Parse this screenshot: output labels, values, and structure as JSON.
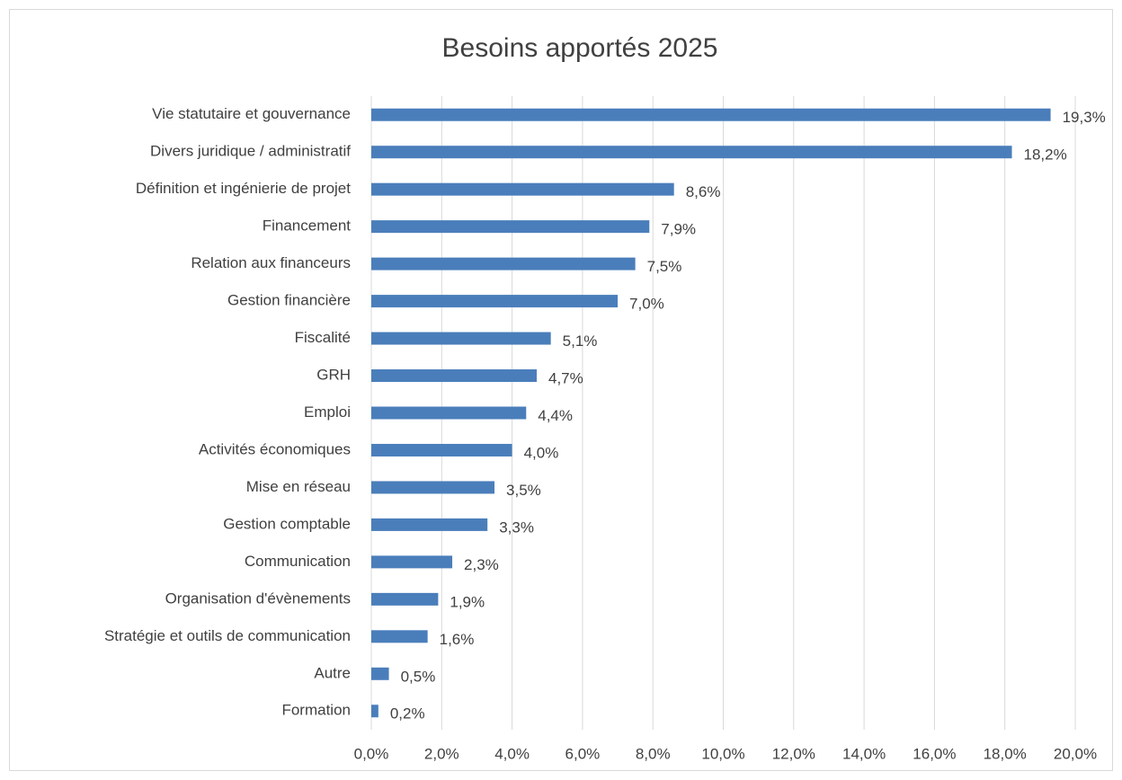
{
  "chart_data": {
    "type": "bar",
    "orientation": "horizontal",
    "title": "Besoins apportés  2025",
    "categories": [
      "Vie statutaire et gouvernance",
      "Divers juridique / administratif",
      "Définition et ingénierie de projet",
      "Financement",
      "Relation aux financeurs",
      "Gestion financière",
      "Fiscalité",
      "GRH",
      "Emploi",
      "Activités économiques",
      "Mise en réseau",
      "Gestion comptable",
      "Communication",
      "Organisation d'évènements",
      "Stratégie et outils de communication",
      "Autre",
      "Formation"
    ],
    "values": [
      19.3,
      18.2,
      8.6,
      7.9,
      7.5,
      7.0,
      5.1,
      4.7,
      4.4,
      4.0,
      3.5,
      3.3,
      2.3,
      1.9,
      1.6,
      0.5,
      0.2
    ],
    "value_labels": [
      "19,3%",
      "18,2%",
      "8,6%",
      "7,9%",
      "7,5%",
      "7,0%",
      "5,1%",
      "4,7%",
      "4,4%",
      "4,0%",
      "3,5%",
      "3,3%",
      "2,3%",
      "1,9%",
      "1,6%",
      "0,5%",
      "0,2%"
    ],
    "color": "#4a7ebb",
    "xlim": [
      0,
      20
    ],
    "xticks": [
      {
        "value": 0,
        "label": "0,0%"
      },
      {
        "value": 2,
        "label": "2,0%"
      },
      {
        "value": 4,
        "label": "4,0%"
      },
      {
        "value": 6,
        "label": "6,0%"
      },
      {
        "value": 8,
        "label": "8,0%"
      },
      {
        "value": 10,
        "label": "10,0%"
      },
      {
        "value": 12,
        "label": "12,0%"
      },
      {
        "value": 14,
        "label": "14,0%"
      },
      {
        "value": 16,
        "label": "16,0%"
      },
      {
        "value": 18,
        "label": "18,0%"
      },
      {
        "value": 20,
        "label": "20,0%"
      }
    ],
    "grid": true
  }
}
